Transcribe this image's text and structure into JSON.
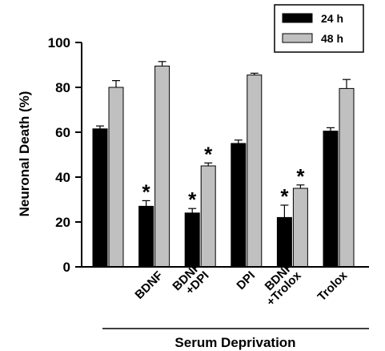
{
  "chart_data": {
    "type": "bar",
    "ylabel": "Neuronal Death (%)",
    "xlabel": "Serum Deprivation",
    "ylim": [
      0,
      100
    ],
    "yticks": [
      "0",
      "20",
      "40",
      "60",
      "80",
      "100"
    ],
    "categories": [
      "",
      "BDNF",
      "BDNF\n+DPI",
      "DPI",
      "BDNF\n+Trolox",
      "Trolox"
    ],
    "category_lines": [
      [],
      [
        "BDNF"
      ],
      [
        "BDNF",
        "+DPI"
      ],
      [
        "DPI"
      ],
      [
        "BDNF",
        "+Trolox"
      ],
      [
        "Trolox"
      ]
    ],
    "series": [
      {
        "name": "24 h",
        "color": "#000000",
        "values": [
          61.5,
          27,
          24,
          55,
          22,
          60.5
        ],
        "errors": [
          1.3,
          2.5,
          2,
          1.5,
          5.5,
          1.5
        ],
        "significant": [
          false,
          true,
          true,
          false,
          true,
          false
        ]
      },
      {
        "name": "48 h",
        "color": "#c0c0c0",
        "values": [
          80,
          89.5,
          45,
          85.5,
          35,
          79.5
        ],
        "errors": [
          3,
          2,
          1.3,
          0.8,
          1.5,
          4
        ],
        "significant": [
          false,
          false,
          true,
          false,
          true,
          false
        ]
      }
    ],
    "significance_marker": "*",
    "legend_position": "top-right",
    "grid": false
  }
}
